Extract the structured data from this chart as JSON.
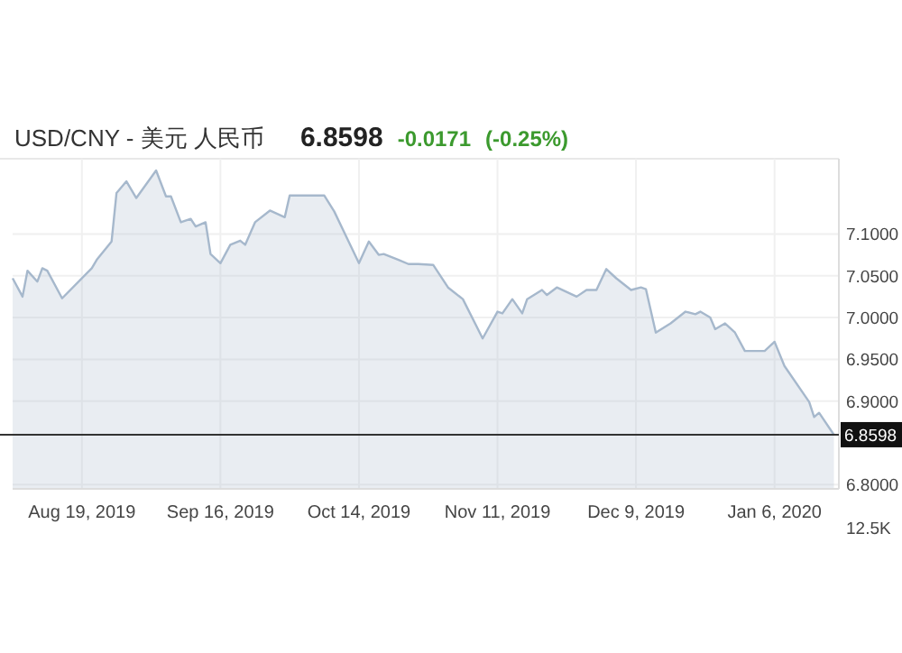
{
  "chart_data": {
    "type": "area",
    "title": "USD/CNY - 美元 人民币",
    "annotations": [
      "6.8598",
      "-0.0171",
      "(-0.25%)",
      "12.5K"
    ],
    "x": [
      "2019-08-05",
      "2019-08-07",
      "2019-08-08",
      "2019-08-10",
      "2019-08-11",
      "2019-08-12",
      "2019-08-15",
      "2019-08-21",
      "2019-08-22",
      "2019-08-25",
      "2019-08-26",
      "2019-08-28",
      "2019-08-30",
      "2019-09-03",
      "2019-09-05",
      "2019-09-06",
      "2019-09-08",
      "2019-09-10",
      "2019-09-11",
      "2019-09-13",
      "2019-09-14",
      "2019-09-16",
      "2019-09-18",
      "2019-09-20",
      "2019-09-21",
      "2019-09-23",
      "2019-09-26",
      "2019-09-29",
      "2019-09-30",
      "2019-10-07",
      "2019-10-09",
      "2019-10-14",
      "2019-10-16",
      "2019-10-18",
      "2019-10-19",
      "2019-10-22",
      "2019-10-24",
      "2019-10-26",
      "2019-10-29",
      "2019-11-01",
      "2019-11-04",
      "2019-11-08",
      "2019-11-11",
      "2019-11-12",
      "2019-11-14",
      "2019-11-16",
      "2019-11-17",
      "2019-11-20",
      "2019-11-21",
      "2019-11-23",
      "2019-11-27",
      "2019-11-29",
      "2019-12-01",
      "2019-12-03",
      "2019-12-05",
      "2019-12-08",
      "2019-12-10",
      "2019-12-11",
      "2019-12-13",
      "2019-12-16",
      "2019-12-19",
      "2019-12-21",
      "2019-12-22",
      "2019-12-24",
      "2019-12-25",
      "2019-12-27",
      "2019-12-29",
      "2019-12-31",
      "2020-01-04",
      "2020-01-06",
      "2020-01-08",
      "2020-01-13",
      "2020-01-14",
      "2020-01-15",
      "2020-01-18"
    ],
    "series": [
      {
        "color": "#a6b8cc",
        "values": [
          7.047,
          7.025,
          7.056,
          7.043,
          7.059,
          7.056,
          7.023,
          7.059,
          7.069,
          7.091,
          7.149,
          7.163,
          7.143,
          7.176,
          7.145,
          7.145,
          7.114,
          7.118,
          7.109,
          7.114,
          7.076,
          7.065,
          7.087,
          7.092,
          7.087,
          7.114,
          7.128,
          7.12,
          7.146,
          7.146,
          7.127,
          7.065,
          7.091,
          7.075,
          7.076,
          7.069,
          7.064,
          7.064,
          7.063,
          7.036,
          7.022,
          6.975,
          7.007,
          7.005,
          7.022,
          7.005,
          7.022,
          7.033,
          7.027,
          7.036,
          7.025,
          7.033,
          7.033,
          7.058,
          7.047,
          7.033,
          7.036,
          7.034,
          6.982,
          6.993,
          7.007,
          7.004,
          7.007,
          7.0,
          6.986,
          6.993,
          6.982,
          6.96,
          6.96,
          6.971,
          6.942,
          6.899,
          6.881,
          6.886,
          6.8598
        ]
      }
    ],
    "xlim": [
      "2019-08-05",
      "2020-01-19"
    ],
    "xticks": [
      {
        "value": "2019-08-19",
        "label": "Aug 19, 2019"
      },
      {
        "value": "2019-09-16",
        "label": "Sep 16, 2019"
      },
      {
        "value": "2019-10-14",
        "label": "Oct 14, 2019"
      },
      {
        "value": "2019-11-11",
        "label": "Nov 11, 2019"
      },
      {
        "value": "2019-12-09",
        "label": "Dec 9, 2019"
      },
      {
        "value": "2020-01-06",
        "label": "Jan 6, 2020"
      }
    ],
    "ylim": [
      6.795,
      7.19
    ],
    "yticks": [
      {
        "value": 6.8,
        "label": "6.8000"
      },
      {
        "value": 6.9,
        "label": "6.9000"
      },
      {
        "value": 6.95,
        "label": "6.9500"
      },
      {
        "value": 7.0,
        "label": "7.0000"
      },
      {
        "value": 7.05,
        "label": "7.0500"
      },
      {
        "value": 7.1,
        "label": "7.1000"
      }
    ],
    "ref_lines": [
      {
        "axis": "y",
        "value": 6.8598,
        "label": "6.8598",
        "color": "#333333"
      }
    ],
    "grid": true
  }
}
